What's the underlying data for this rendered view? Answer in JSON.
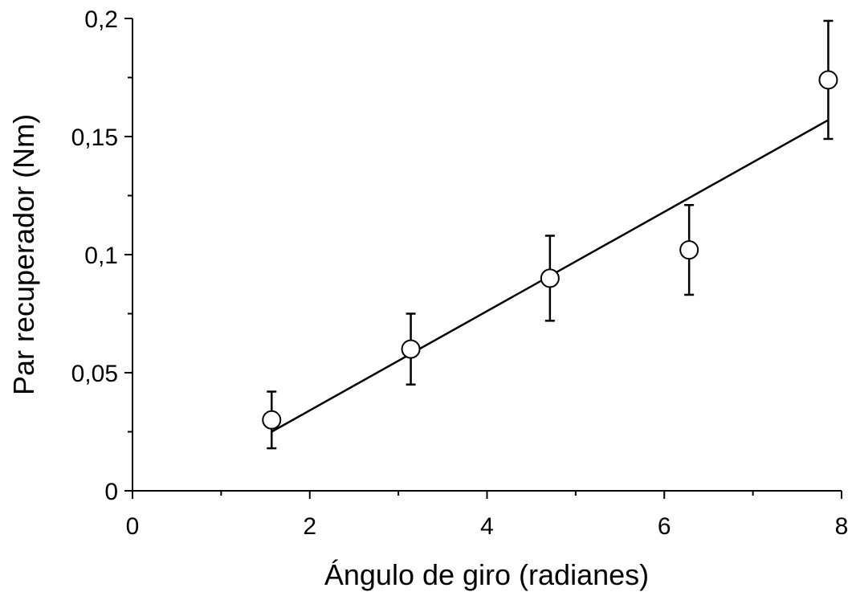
{
  "chart_data": {
    "type": "scatter",
    "title": "",
    "xlabel": "Ángulo de giro (radianes)",
    "ylabel": "Par recuperador (Nm)",
    "xlim": [
      0,
      8
    ],
    "ylim": [
      0,
      0.2
    ],
    "x_major_ticks": [
      0,
      2,
      4,
      6,
      8
    ],
    "x_minor_ticks": [
      1,
      3,
      5,
      7
    ],
    "x_tick_labels": [
      "0",
      "2",
      "4",
      "6",
      "8"
    ],
    "y_major_ticks": [
      0,
      0.05,
      0.1,
      0.15,
      0.2
    ],
    "y_minor_ticks": [
      0.025,
      0.075,
      0.125,
      0.175
    ],
    "y_tick_labels": [
      "0",
      "0,05",
      "0,1",
      "0,15",
      "0,2"
    ],
    "grid": false,
    "legend": "none",
    "series": [
      {
        "points": [
          {
            "x": 1.57,
            "y": 0.03,
            "err_low": 0.018,
            "err_high": 0.042
          },
          {
            "x": 3.14,
            "y": 0.06,
            "err_low": 0.045,
            "err_high": 0.075
          },
          {
            "x": 4.71,
            "y": 0.09,
            "err_low": 0.072,
            "err_high": 0.108
          },
          {
            "x": 6.28,
            "y": 0.102,
            "err_low": 0.083,
            "err_high": 0.121
          },
          {
            "x": 7.85,
            "y": 0.174,
            "err_low": 0.149,
            "err_high": 0.199
          }
        ],
        "marker": "open-circle",
        "color": "#000000"
      }
    ],
    "fit_line": {
      "x": [
        1.57,
        7.85
      ],
      "y": [
        0.025,
        0.157
      ],
      "color": "#000000"
    }
  }
}
